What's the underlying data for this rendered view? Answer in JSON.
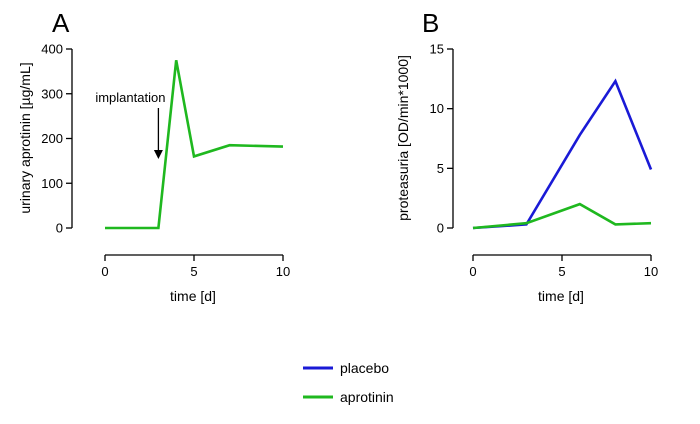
{
  "chart_data": [
    {
      "panel": "A",
      "type": "line",
      "xlabel": "time [d]",
      "ylabel": "urinary aprotinin [µg/mL]",
      "xlim": [
        0,
        10
      ],
      "ylim": [
        0,
        400
      ],
      "xticks": [
        0,
        5,
        10
      ],
      "yticks": [
        0,
        100,
        200,
        300,
        400
      ],
      "annotation": {
        "text": "implantation",
        "x": 3
      },
      "series": [
        {
          "name": "aprotinin",
          "color": "#1fb81f",
          "points": [
            [
              0,
              0
            ],
            [
              3,
              0
            ],
            [
              4,
              375
            ],
            [
              5,
              160
            ],
            [
              7,
              185
            ],
            [
              10,
              182
            ]
          ]
        }
      ]
    },
    {
      "panel": "B",
      "type": "line",
      "xlabel": "time [d]",
      "ylabel": "proteasuria [OD/min*1000]",
      "xlim": [
        0,
        10
      ],
      "ylim": [
        0,
        15
      ],
      "xticks": [
        0,
        5,
        10
      ],
      "yticks": [
        0,
        5,
        10,
        15
      ],
      "series": [
        {
          "name": "placebo",
          "color": "#1a1ad6",
          "points": [
            [
              0,
              0
            ],
            [
              3,
              0.3
            ],
            [
              6,
              7.8
            ],
            [
              8,
              12.3
            ],
            [
              10,
              4.9
            ]
          ]
        },
        {
          "name": "aprotinin",
          "color": "#1fb81f",
          "points": [
            [
              0,
              0
            ],
            [
              3,
              0.4
            ],
            [
              6,
              2.0
            ],
            [
              8,
              0.3
            ],
            [
              10,
              0.4
            ]
          ]
        }
      ]
    }
  ],
  "legend": [
    {
      "name": "placebo",
      "color": "#1a1ad6"
    },
    {
      "name": "aprotinin",
      "color": "#1fb81f"
    }
  ]
}
